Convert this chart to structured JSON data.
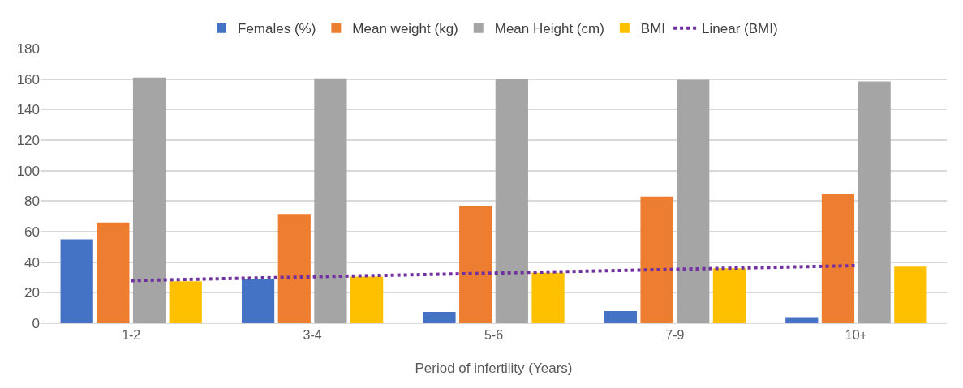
{
  "chart_data": {
    "type": "bar",
    "xlabel": "Period of infertility (Years)",
    "categories": [
      "1-2",
      "3-4",
      "5-6",
      "7-9",
      "10+"
    ],
    "series": [
      {
        "name": "Females (%)",
        "color": "#4472c4",
        "values": [
          55,
          29,
          7.5,
          8,
          4
        ]
      },
      {
        "name": "Mean weight (kg)",
        "color": "#ed7d31",
        "values": [
          66,
          71.5,
          77,
          83,
          84.5
        ]
      },
      {
        "name": "Mean Height (cm)",
        "color": "#a5a5a5",
        "values": [
          161,
          160.5,
          160,
          159.5,
          158.5
        ]
      },
      {
        "name": "BMI",
        "color": "#ffc000",
        "values": [
          27.5,
          30.5,
          33,
          36,
          37
        ]
      },
      {
        "name": "Linear (BMI)",
        "type": "line",
        "line_style": "dotted",
        "color": "#7030a0",
        "values": [
          27.9,
          30.4,
          32.8,
          35.3,
          37.7
        ]
      }
    ],
    "ylim": [
      0,
      180
    ],
    "yticks": [
      0,
      20,
      40,
      60,
      80,
      100,
      120,
      140,
      160,
      180
    ],
    "grid": "y",
    "legend": "top"
  }
}
